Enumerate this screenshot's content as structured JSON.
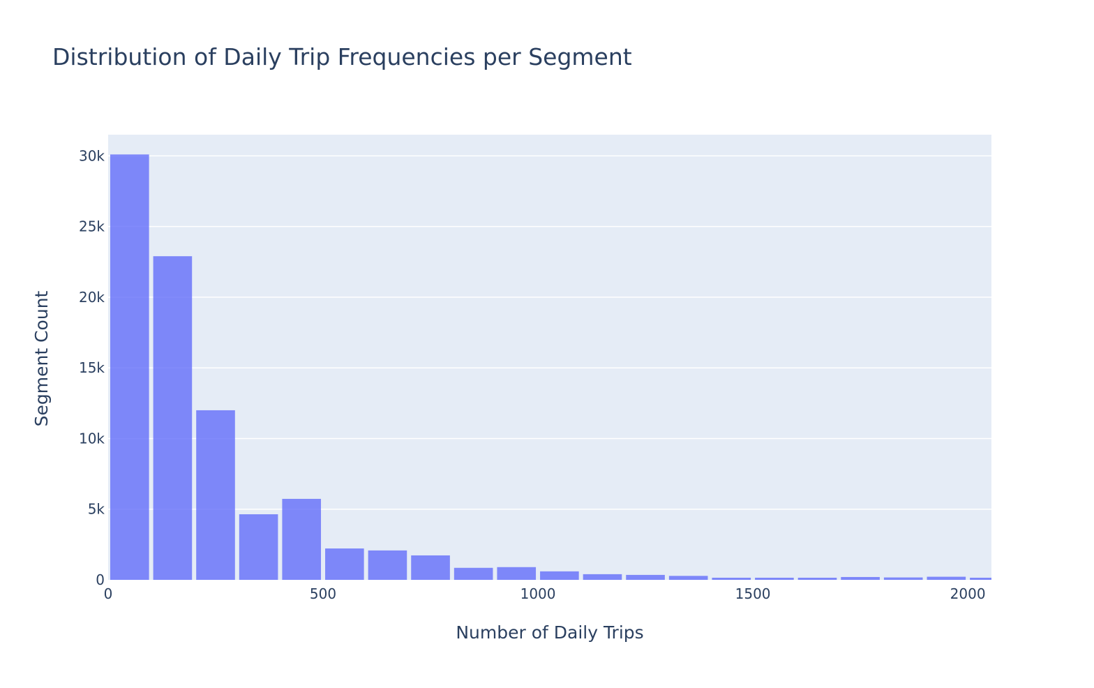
{
  "chart_data": {
    "type": "bar",
    "title": "Distribution of Daily Trip Frequencies per Segment",
    "xlabel": "Number of Daily Trips",
    "ylabel": "Segment Count",
    "bin_width": 100,
    "bins_start": [
      0,
      100,
      200,
      300,
      400,
      500,
      600,
      700,
      800,
      900,
      1000,
      1100,
      1200,
      1300,
      1400,
      1500,
      1600,
      1700,
      1800,
      1900,
      2000
    ],
    "values": [
      30100,
      22900,
      12000,
      4640,
      5730,
      2220,
      2080,
      1730,
      850,
      900,
      600,
      400,
      350,
      280,
      150,
      150,
      150,
      200,
      170,
      220,
      150
    ],
    "xlim": [
      0,
      2055
    ],
    "ylim": [
      0,
      31500
    ],
    "xticks": [
      0,
      500,
      1000,
      1500,
      2000
    ],
    "xtick_labels": [
      "0",
      "500",
      "1000",
      "1500",
      "2000"
    ],
    "yticks": [
      0,
      5000,
      10000,
      15000,
      20000,
      25000,
      30000
    ],
    "ytick_labels": [
      "0",
      "5k",
      "10k",
      "15k",
      "20k",
      "25k",
      "30k"
    ],
    "grid": true,
    "bar_color": "#636efa",
    "bar_opacity": 0.8,
    "plot_bg": "#e5ecf6"
  }
}
